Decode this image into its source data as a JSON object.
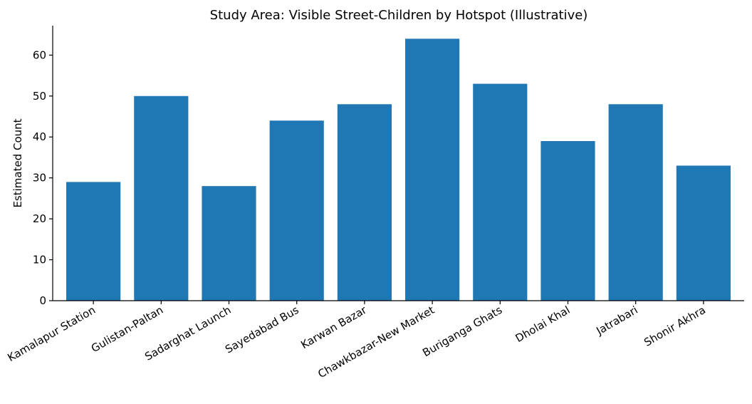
{
  "chart_data": {
    "type": "bar",
    "title": "Study Area: Visible Street-Children by Hotspot (Illustrative)",
    "xlabel": "",
    "ylabel": "Estimated Count",
    "categories": [
      "Kamalapur Station",
      "Gulistan-Paltan",
      "Sadarghat Launch",
      "Sayedabad Bus",
      "Karwan Bazar",
      "Chawkbazar-New Market",
      "Buriganga Ghats",
      "Dholai Khal",
      "Jatrabari",
      "Shonir Akhra"
    ],
    "values": [
      29,
      50,
      28,
      44,
      48,
      64,
      53,
      39,
      48,
      33
    ],
    "ylim": [
      0,
      67.2
    ],
    "yticks": [
      0,
      10,
      20,
      30,
      40,
      50,
      60
    ],
    "grid": false,
    "bar_color": "#1f77b4",
    "axis_color": "#000000"
  }
}
